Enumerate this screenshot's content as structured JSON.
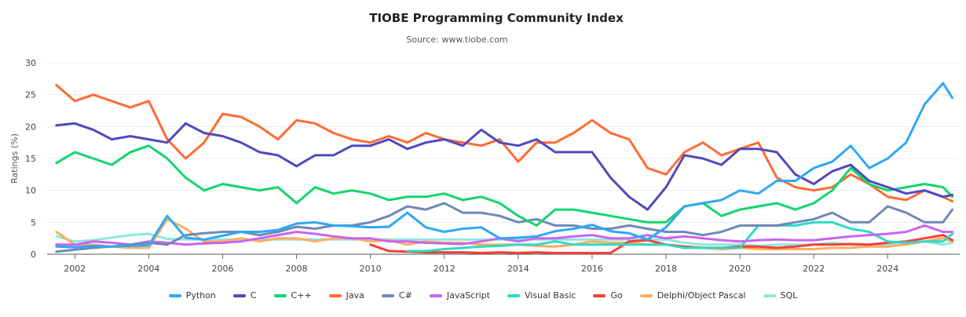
{
  "chart_data": {
    "type": "line",
    "title": "TIOBE Programming Community Index",
    "subtitle": "Source: www.tiobe.com",
    "xlabel": "",
    "ylabel": "Ratings (%)",
    "ylim": [
      0,
      30
    ],
    "xlim": [
      2001.25,
      2025.95
    ],
    "yticks": [
      0,
      5,
      10,
      15,
      20,
      25,
      30
    ],
    "xticks": [
      2002,
      2004,
      2006,
      2008,
      2010,
      2012,
      2014,
      2016,
      2018,
      2020,
      2022,
      2024
    ],
    "grid": true,
    "legend_position": "bottom",
    "x": [
      2001.5,
      2002.0,
      2002.5,
      2003.0,
      2003.5,
      2004.0,
      2004.5,
      2005.0,
      2005.5,
      2006.0,
      2006.5,
      2007.0,
      2007.5,
      2008.0,
      2008.5,
      2009.0,
      2009.5,
      2010.0,
      2010.5,
      2011.0,
      2011.5,
      2012.0,
      2012.5,
      2013.0,
      2013.5,
      2014.0,
      2014.5,
      2015.0,
      2015.5,
      2016.0,
      2016.5,
      2017.0,
      2017.5,
      2018.0,
      2018.5,
      2019.0,
      2019.5,
      2020.0,
      2020.5,
      2021.0,
      2021.5,
      2022.0,
      2022.5,
      2023.0,
      2023.5,
      2024.0,
      2024.5,
      2025.0,
      2025.5,
      2025.75
    ],
    "series": [
      {
        "name": "Python",
        "color": "#2EA8F5",
        "values": [
          1.2,
          1.1,
          1.3,
          1.2,
          1.3,
          1.4,
          6.0,
          2.6,
          2.3,
          2.9,
          3.5,
          3.5,
          3.8,
          4.8,
          5.0,
          4.5,
          4.4,
          4.2,
          4.3,
          6.5,
          4.2,
          3.5,
          4.0,
          4.2,
          2.5,
          2.6,
          2.8,
          3.6,
          4.0,
          4.6,
          3.6,
          3.3,
          2.3,
          4.2,
          7.5,
          8.0,
          8.5,
          10.0,
          9.5,
          11.5,
          11.5,
          13.5,
          14.5,
          17.0,
          13.5,
          15.0,
          17.5,
          23.5,
          26.8,
          24.5
        ]
      },
      {
        "name": "C",
        "color": "#5048BF",
        "values": [
          20.2,
          20.5,
          19.5,
          18.0,
          18.5,
          18.0,
          17.5,
          20.5,
          19.0,
          18.5,
          17.5,
          16.0,
          15.5,
          13.8,
          15.5,
          15.5,
          17.0,
          17.0,
          18.0,
          16.5,
          17.5,
          18.0,
          17.0,
          19.5,
          17.5,
          17.0,
          18.0,
          16.0,
          16.0,
          16.0,
          12.0,
          9.0,
          7.0,
          10.5,
          15.5,
          15.0,
          14.0,
          16.5,
          16.5,
          16.0,
          12.5,
          11.0,
          13.0,
          14.0,
          11.5,
          10.5,
          9.5,
          10.0,
          9.0,
          9.3
        ]
      },
      {
        "name": "C++",
        "color": "#12D66B",
        "values": [
          14.3,
          16.0,
          15.0,
          14.0,
          16.0,
          17.0,
          15.0,
          12.0,
          10.0,
          11.0,
          10.5,
          10.0,
          10.5,
          8.0,
          10.5,
          9.5,
          10.0,
          9.5,
          8.5,
          9.0,
          9.0,
          9.5,
          8.5,
          9.0,
          8.0,
          6.0,
          4.5,
          7.0,
          7.0,
          6.5,
          6.0,
          5.5,
          5.0,
          5.0,
          7.5,
          8.0,
          6.0,
          7.0,
          7.5,
          8.0,
          7.0,
          8.0,
          10.0,
          13.5,
          11.0,
          10.0,
          10.5,
          11.0,
          10.5,
          9.0
        ]
      },
      {
        "name": "Java",
        "color": "#FF6A33",
        "values": [
          26.5,
          24.0,
          25.0,
          24.0,
          23.0,
          24.0,
          18.0,
          15.0,
          17.5,
          22.0,
          21.5,
          20.0,
          18.0,
          21.0,
          20.5,
          19.0,
          18.0,
          17.5,
          18.5,
          17.5,
          19.0,
          18.0,
          17.5,
          17.0,
          18.0,
          14.5,
          17.5,
          17.5,
          19.0,
          21.0,
          19.0,
          18.0,
          13.5,
          12.5,
          16.0,
          17.5,
          15.5,
          16.5,
          17.5,
          12.0,
          10.5,
          10.0,
          10.5,
          12.5,
          11.0,
          9.0,
          8.5,
          10.0,
          9.0,
          8.3
        ]
      },
      {
        "name": "C#",
        "color": "#6F88B8",
        "values": [
          0.4,
          0.7,
          1.0,
          1.2,
          1.5,
          1.8,
          1.5,
          3.0,
          3.3,
          3.5,
          3.5,
          3.0,
          3.5,
          4.3,
          4.0,
          4.5,
          4.5,
          5.0,
          6.0,
          7.5,
          7.0,
          8.0,
          6.5,
          6.5,
          6.0,
          5.0,
          5.5,
          4.5,
          4.5,
          4.0,
          4.0,
          4.5,
          4.0,
          3.5,
          3.5,
          3.0,
          3.5,
          4.5,
          4.5,
          4.5,
          5.0,
          5.5,
          6.5,
          5.0,
          5.0,
          7.5,
          6.5,
          5.0,
          5.0,
          7.0
        ]
      },
      {
        "name": "JavaScript",
        "color": "#CB63F0",
        "values": [
          1.5,
          1.5,
          2.0,
          1.8,
          1.5,
          2.0,
          1.8,
          1.5,
          1.7,
          1.8,
          2.0,
          2.5,
          3.0,
          3.5,
          3.2,
          2.8,
          2.5,
          2.5,
          2.0,
          2.0,
          1.8,
          1.7,
          1.6,
          2.0,
          2.5,
          2.0,
          2.5,
          2.5,
          2.8,
          3.0,
          2.5,
          2.5,
          3.0,
          2.5,
          2.8,
          2.5,
          2.2,
          2.0,
          2.2,
          2.3,
          2.2,
          2.2,
          2.5,
          2.8,
          3.0,
          3.2,
          3.5,
          4.5,
          3.5,
          3.5
        ]
      },
      {
        "name": "Visual Basic",
        "color": "#2ED9C2",
        "values": [
          null,
          null,
          null,
          null,
          null,
          null,
          null,
          null,
          null,
          null,
          null,
          null,
          null,
          null,
          null,
          null,
          null,
          null,
          null,
          0.5,
          0.5,
          0.8,
          1.0,
          1.2,
          1.3,
          1.5,
          1.5,
          2.0,
          1.5,
          1.5,
          1.5,
          1.5,
          1.5,
          1.5,
          1.0,
          1.0,
          1.0,
          1.0,
          4.5,
          4.5,
          4.5,
          5.0,
          5.0,
          4.0,
          3.5,
          2.0,
          1.8,
          2.0,
          2.0,
          3.2
        ]
      },
      {
        "name": "Go",
        "color": "#F0403A",
        "values": [
          null,
          null,
          null,
          null,
          null,
          null,
          null,
          null,
          null,
          null,
          null,
          null,
          null,
          null,
          null,
          null,
          null,
          1.5,
          0.5,
          0.4,
          0.3,
          0.3,
          0.3,
          0.2,
          0.3,
          0.2,
          0.3,
          0.2,
          0.2,
          0.2,
          0.2,
          2.0,
          2.2,
          1.5,
          1.2,
          1.0,
          1.0,
          1.2,
          1.2,
          1.0,
          1.2,
          1.5,
          1.5,
          1.6,
          1.5,
          1.8,
          2.0,
          2.5,
          3.0,
          2.2
        ]
      },
      {
        "name": "Delphi/Object Pascal",
        "color": "#FFAD5E",
        "values": [
          3.5,
          1.5,
          1.5,
          1.2,
          1.0,
          1.0,
          5.5,
          4.0,
          2.0,
          2.0,
          2.5,
          2.0,
          2.5,
          2.5,
          2.0,
          2.5,
          2.5,
          2.0,
          2.2,
          1.5,
          2.0,
          1.8,
          1.8,
          1.5,
          1.5,
          1.5,
          1.3,
          1.2,
          1.5,
          2.0,
          1.8,
          1.8,
          1.5,
          1.5,
          1.2,
          1.0,
          0.8,
          1.0,
          0.8,
          0.8,
          0.8,
          0.8,
          1.0,
          1.0,
          1.2,
          1.2,
          1.5,
          2.0,
          2.5,
          2.0
        ]
      },
      {
        "name": "SQL",
        "color": "#8EE6DF",
        "values": [
          2.8,
          2.0,
          2.2,
          2.6,
          3.0,
          3.2,
          2.4,
          2.3,
          2.3,
          2.3,
          2.3,
          2.3,
          2.3,
          2.3,
          2.3,
          2.3,
          2.3,
          2.3,
          2.3,
          2.3,
          2.3,
          2.3,
          2.3,
          2.3,
          2.3,
          2.3,
          2.3,
          2.3,
          2.3,
          2.3,
          2.3,
          2.3,
          2.3,
          2.3,
          1.8,
          1.5,
          1.5,
          1.5,
          1.3,
          1.5,
          1.5,
          1.5,
          1.8,
          1.5,
          1.3,
          1.4,
          1.6,
          2.0,
          1.5,
          1.8
        ]
      }
    ]
  }
}
